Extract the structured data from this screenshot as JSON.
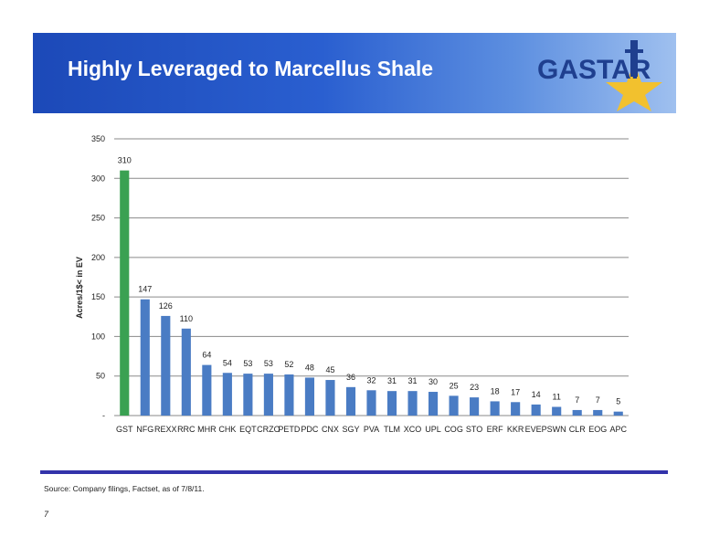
{
  "header": {
    "title": "Highly Leveraged to Marcellus Shale",
    "logo_text": "GASTAR"
  },
  "colors": {
    "header_blue": "#1c49b8",
    "highlight_bar": "#3aa152",
    "bar": "#4a7cc4",
    "rule": "#3333aa"
  },
  "chart_data": {
    "type": "bar",
    "title": "",
    "xlabel": "",
    "ylabel": "Acres/1$< in EV",
    "ylim": [
      0,
      350
    ],
    "yticks": [
      "-",
      "50",
      "100",
      "150",
      "200",
      "250",
      "300",
      "350"
    ],
    "ytick_values": [
      0,
      50,
      100,
      150,
      200,
      250,
      300,
      350
    ],
    "grid": true,
    "categories": [
      "GST",
      "NFG",
      "REXX",
      "RRC",
      "MHR",
      "CHK",
      "EQT",
      "CRZO",
      "PETD",
      "PDC",
      "CNX",
      "SGY",
      "PVA",
      "TLM",
      "XCO",
      "UPL",
      "COG",
      "STO",
      "ERF",
      "KKR",
      "EVEP",
      "SWN",
      "CLR",
      "EOG",
      "APC"
    ],
    "values": [
      310,
      147,
      126,
      110,
      64,
      54,
      53,
      53,
      52,
      48,
      45,
      36,
      32,
      31,
      31,
      30,
      25,
      23,
      18,
      17,
      14,
      11,
      7,
      7,
      5
    ],
    "highlight_index": 0
  },
  "footer": {
    "source": "Source: Company filings, Factset, as of 7/8/11.",
    "page": "7"
  }
}
